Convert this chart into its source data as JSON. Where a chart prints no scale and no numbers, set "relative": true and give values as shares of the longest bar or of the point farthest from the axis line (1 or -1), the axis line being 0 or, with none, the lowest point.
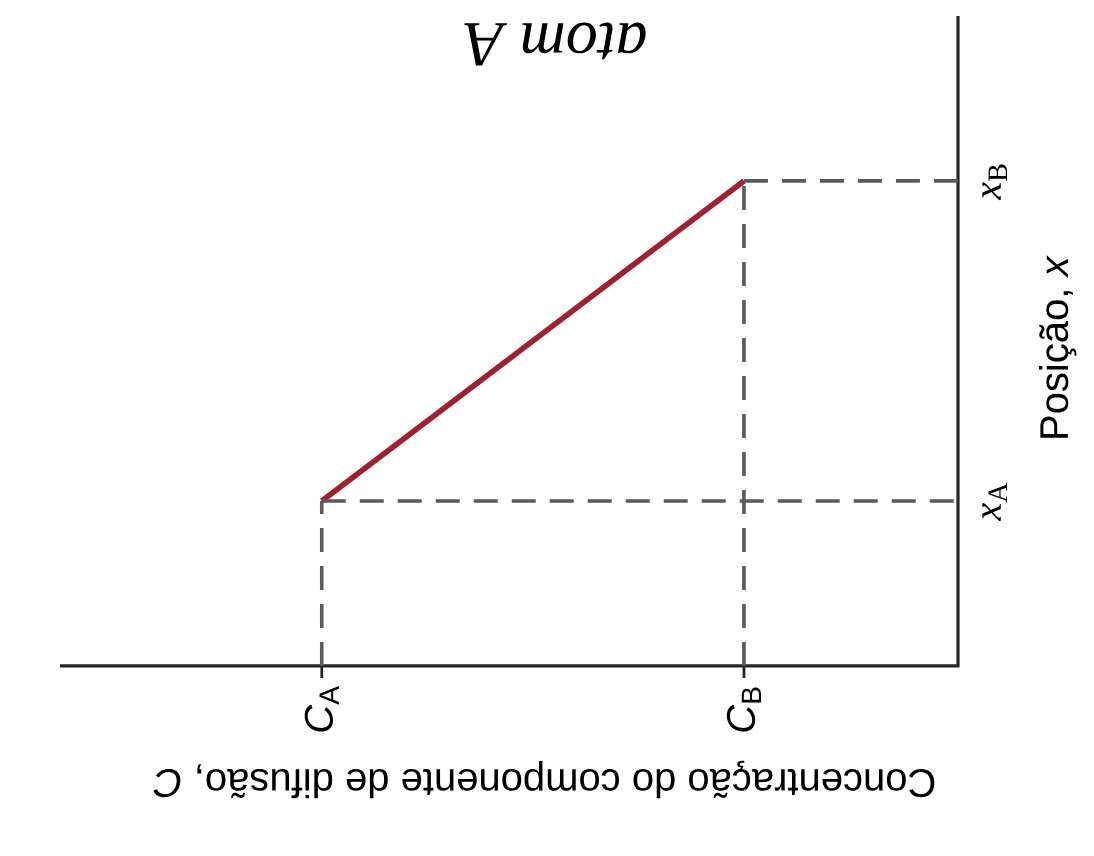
{
  "chart_data": {
    "type": "line",
    "relative": true,
    "xlabel": "Concentração do componente de difusão, *C*",
    "ylabel": "Posição, *x*",
    "annotations": [
      "atom A"
    ],
    "categories": [
      "*C*$_{A}$",
      "*C*$_{B}$"
    ],
    "series": [
      {
        "values": [
          0.34,
          1
        ],
        "color": "#a02030",
        "line_style": "solid"
      }
    ],
    "ref_lines": [
      {
        "axis": "x",
        "value": "*C*$_{A}$",
        "color": "#5a5a5a",
        "line_style": "dashed"
      },
      {
        "axis": "x",
        "value": "*C*$_{B}$",
        "color": "#5a5a5a",
        "line_style": "dashed"
      },
      {
        "axis": "y",
        "value": 0.34,
        "label": "*x*$_{A}$",
        "color": "#5a5a5a",
        "line_style": "dashed"
      },
      {
        "axis": "y",
        "value": 1,
        "label": "*x*$_{B}$",
        "color": "#5a5a5a",
        "line_style": "dashed"
      }
    ],
    "grid": false,
    "marker": "none"
  }
}
